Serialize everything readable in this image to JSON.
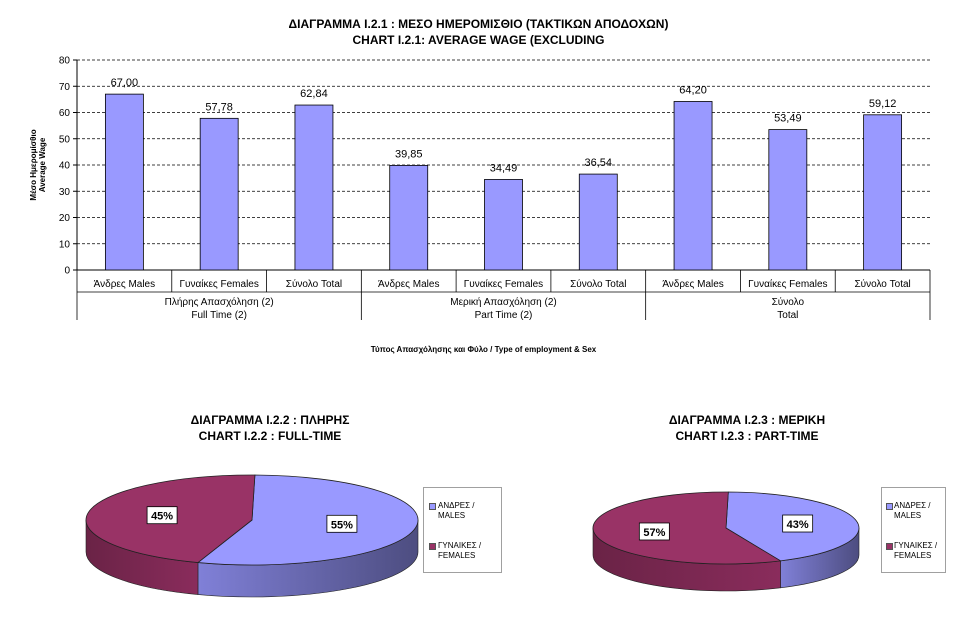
{
  "bar_title": {
    "line1": "ΔΙΑΓΡΑΜΜΑ Ι.2.1 : ΜΕΣΟ ΗΜΕΡΟΜΙΣΘΙΟ (ΤΑΚΤΙΚΩΝ ΑΠΟΔΟΧΩΝ)",
    "line2": "CHART I.2.1: AVERAGE WAGE (EXCLUDING"
  },
  "pie1_title": {
    "line1": "ΔΙΑΓΡΑΜΜΑ Ι.2.2 : ΠΛΗΡΗΣ",
    "line2": "CHART I.2.2 : FULL-TIME"
  },
  "pie2_title": {
    "line1": "ΔΙΑΓΡΑΜΜΑ Ι.2.3 : ΜΕΡΙΚΗ",
    "line2": "CHART I.2.3 : PART-TIME"
  },
  "colors": {
    "bar": "#9999ff",
    "males": "#9999ff",
    "females": "#993366"
  },
  "chart_data": [
    {
      "type": "bar",
      "ylabel_line1": "Μέσο Ημερομίσθιο",
      "ylabel_line2": "Average Wage",
      "xlabel": "Τύπος Απασχόλησης και Φύλο / Type of employment & Sex",
      "ylim": [
        0,
        80
      ],
      "yticks": [
        0,
        10,
        20,
        30,
        40,
        50,
        60,
        70,
        80
      ],
      "grid": true,
      "categories": [
        "Άνδρες  Males",
        "Γυναίκες Females",
        "Σύνολο     Total",
        "Άνδρες  Males",
        "Γυναίκες Females",
        "Σύνολο     Total",
        "Άνδρες  Males",
        "Γυναίκες Females",
        "Σύνολο     Total"
      ],
      "values": [
        67.0,
        57.78,
        62.84,
        39.85,
        34.49,
        36.54,
        64.2,
        53.49,
        59.12
      ],
      "value_labels": [
        "67,00",
        "57,78",
        "62,84",
        "39,85",
        "34,49",
        "36,54",
        "64,20",
        "53,49",
        "59,12"
      ],
      "groups": [
        {
          "line1": "Πλήρης Απασχόληση  (2)",
          "line2": "Full Time (2)"
        },
        {
          "line1": "Μερική Απασχόληση  (2)",
          "line2": "Part Time (2)"
        },
        {
          "line1": "Σύνολο",
          "line2": "Total"
        }
      ]
    },
    {
      "type": "pie",
      "labels": [
        "ΑΝΔΡΕΣ / MALES",
        "ΓΥΝΑΙΚΕΣ / FEMALES"
      ],
      "values": [
        55,
        45
      ],
      "value_labels": [
        "55%",
        "45%"
      ],
      "legend": "right"
    },
    {
      "type": "pie",
      "labels": [
        "ΑΝΔΡΕΣ / MALES",
        "ΓΥΝΑΙΚΕΣ / FEMALES"
      ],
      "values": [
        43,
        57
      ],
      "value_labels": [
        "43%",
        "57%"
      ],
      "legend": "right"
    }
  ],
  "legends": [
    {
      "males_line1": "ΑΝΔΡΕΣ /",
      "males_line2": "MALES",
      "females_line1": "ΓΥΝΑΙΚΕΣ /",
      "females_line2": "FEMALES"
    },
    {
      "males_line1": "ΑΝΔΡΕΣ /",
      "males_line2": "MALES",
      "females_line1": "ΓΥΝΑΙΚΕΣ /",
      "females_line2": "FEMALES"
    }
  ]
}
